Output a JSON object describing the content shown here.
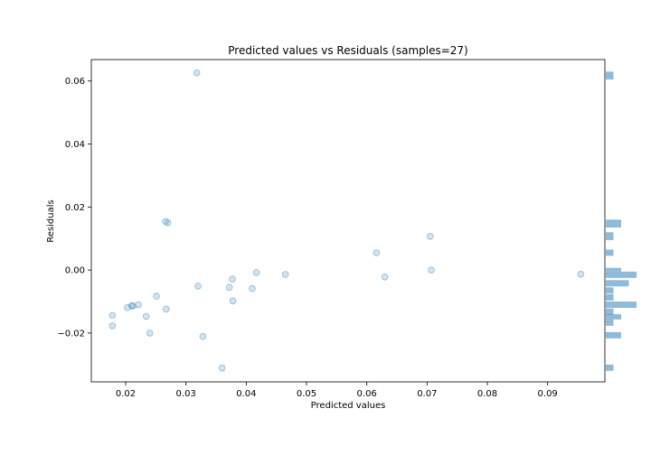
{
  "chart_data": {
    "type": "scatter",
    "title": "Predicted values vs Residuals (samples=27)",
    "xlabel": "Predicted values",
    "ylabel": "Residuals",
    "xlim": [
      0.0143,
      0.0995
    ],
    "ylim": [
      -0.0355,
      0.0668
    ],
    "x_ticks": [
      0.02,
      0.03,
      0.04,
      0.05,
      0.06,
      0.07,
      0.08,
      0.09
    ],
    "x_tick_labels": [
      "0.02",
      "0.03",
      "0.04",
      "0.05",
      "0.06",
      "0.07",
      "0.08",
      "0.09"
    ],
    "y_ticks": [
      -0.02,
      0.0,
      0.02,
      0.04,
      0.06
    ],
    "y_tick_labels": [
      "−0.02",
      "0.00",
      "0.02",
      "0.04",
      "0.06"
    ],
    "grid": false,
    "point_color": "#1f77b4",
    "point_alpha": 0.2,
    "hist_color": "#1f77b4",
    "points": [
      {
        "x": 0.0318,
        "y": 0.0626
      },
      {
        "x": 0.0266,
        "y": 0.0154
      },
      {
        "x": 0.027,
        "y": 0.015
      },
      {
        "x": 0.0616,
        "y": 0.0055
      },
      {
        "x": 0.0705,
        "y": 0.0107
      },
      {
        "x": 0.0707,
        "y": 0.0
      },
      {
        "x": 0.0955,
        "y": -0.0013
      },
      {
        "x": 0.0417,
        "y": -0.0008
      },
      {
        "x": 0.0465,
        "y": -0.0014
      },
      {
        "x": 0.063,
        "y": -0.0022
      },
      {
        "x": 0.0377,
        "y": -0.0029
      },
      {
        "x": 0.032,
        "y": -0.0051
      },
      {
        "x": 0.0372,
        "y": -0.0055
      },
      {
        "x": 0.041,
        "y": -0.0059
      },
      {
        "x": 0.0378,
        "y": -0.0098
      },
      {
        "x": 0.0251,
        "y": -0.0083
      },
      {
        "x": 0.0221,
        "y": -0.011
      },
      {
        "x": 0.021,
        "y": -0.0113
      },
      {
        "x": 0.0203,
        "y": -0.0119
      },
      {
        "x": 0.0267,
        "y": -0.0124
      },
      {
        "x": 0.0178,
        "y": -0.0144
      },
      {
        "x": 0.0234,
        "y": -0.0147
      },
      {
        "x": 0.0178,
        "y": -0.0177
      },
      {
        "x": 0.024,
        "y": -0.02
      },
      {
        "x": 0.0328,
        "y": -0.0211
      },
      {
        "x": 0.036,
        "y": -0.0311
      },
      {
        "x": 0.0212,
        "y": -0.0114
      }
    ],
    "histogram": [
      {
        "low": 0.0605,
        "high": 0.063,
        "count": 1
      },
      {
        "low": 0.0135,
        "high": 0.016,
        "count": 2
      },
      {
        "low": 0.0095,
        "high": 0.012,
        "count": 1
      },
      {
        "low": 0.0045,
        "high": 0.0065,
        "count": 1
      },
      {
        "low": -0.0005,
        "high": 0.0007,
        "count": 2
      },
      {
        "low": -0.0025,
        "high": -0.0005,
        "count": 4
      },
      {
        "low": -0.0052,
        "high": -0.0032,
        "count": 3
      },
      {
        "low": -0.0075,
        "high": -0.0055,
        "count": 1
      },
      {
        "low": -0.0097,
        "high": -0.0077,
        "count": 1
      },
      {
        "low": -0.012,
        "high": -0.01,
        "count": 4
      },
      {
        "low": -0.0142,
        "high": -0.0122,
        "count": 1
      },
      {
        "low": -0.0157,
        "high": -0.014,
        "count": 2
      },
      {
        "low": -0.0177,
        "high": -0.0157,
        "count": 1
      },
      {
        "low": -0.0217,
        "high": -0.0197,
        "count": 2
      },
      {
        "low": -0.032,
        "high": -0.03,
        "count": 1
      }
    ],
    "hist_max_count": 4
  }
}
